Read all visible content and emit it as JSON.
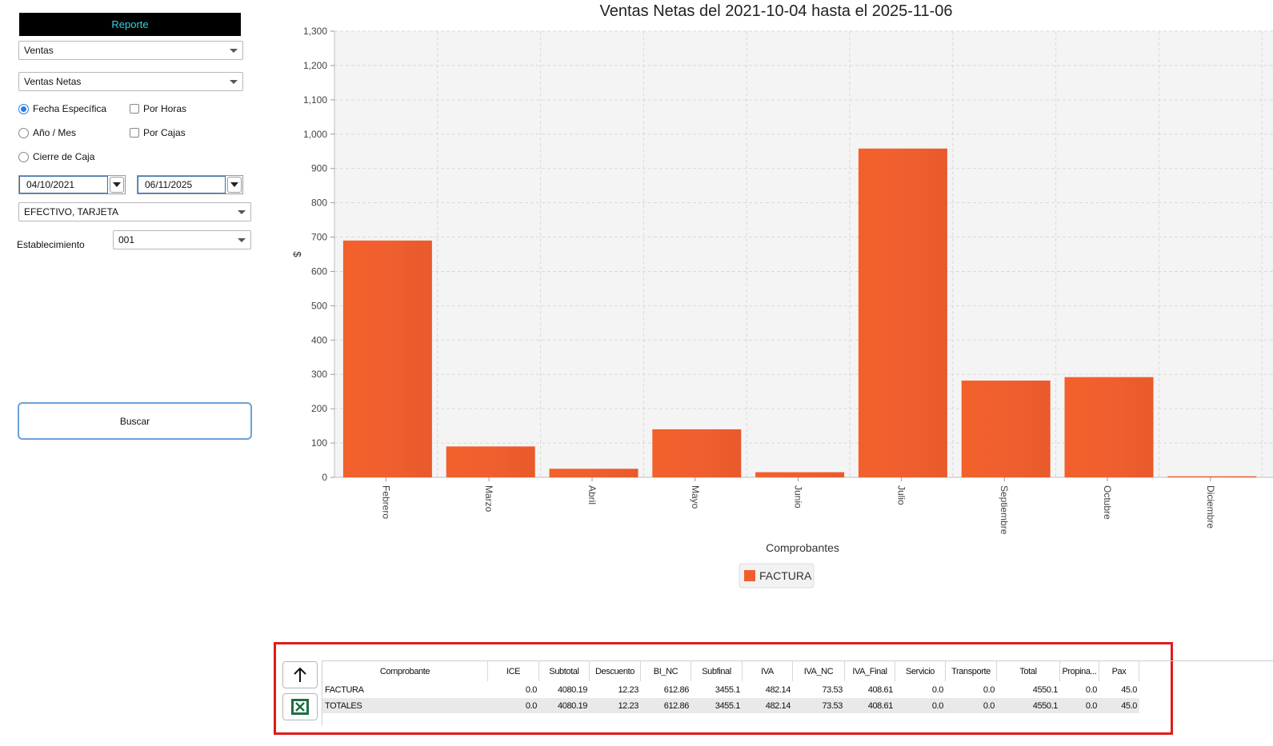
{
  "panel": {
    "header": "Reporte",
    "report_type": "Ventas",
    "report_subtype": "Ventas Netas",
    "radio_fecha": "Fecha Específica",
    "radio_anio": "Año / Mes",
    "radio_cierre": "Cierre de Caja",
    "check_horas": "Por Horas",
    "check_cajas": "Por Cajas",
    "date_from": "04/10/2021",
    "date_to": "06/11/2025",
    "payment": "EFECTIVO, TARJETA",
    "establecimiento_label": "Establecimiento",
    "establecimiento": "001",
    "buscar": "Buscar"
  },
  "colors": {
    "bar": "#f05f2e",
    "plot_bg": "#f4f4f4",
    "accent": "#2b7de0"
  },
  "icons": {
    "export_up": "arrow-up-icon",
    "excel": "excel-icon"
  },
  "chart_data": {
    "type": "bar",
    "title": "Ventas Netas del 2021-10-04 hasta el 2025-11-06",
    "xlabel": "Comprobantes",
    "ylabel": "$",
    "categories": [
      "Febrero",
      "Marzo",
      "Abril",
      "Mayo",
      "Junio",
      "Julio",
      "Septiembre",
      "Octubre",
      "Diciembre"
    ],
    "series": [
      {
        "name": "FACTURA",
        "values": [
          690,
          90,
          25,
          140,
          15,
          958,
          282,
          292,
          3
        ]
      }
    ],
    "ylim": [
      0,
      1300
    ],
    "yticks": [
      0,
      100,
      200,
      300,
      400,
      500,
      600,
      700,
      800,
      900,
      1000,
      1100,
      1200,
      1300
    ],
    "ytick_labels": [
      "0",
      "100",
      "200",
      "300",
      "400",
      "500",
      "600",
      "700",
      "800",
      "900",
      "1,000",
      "1,100",
      "1,200",
      "1,300"
    ],
    "grid": true,
    "legend": "bottom-center"
  },
  "table": {
    "columns": [
      "Comprobante",
      "ICE",
      "Subtotal",
      "Descuento",
      "BI_NC",
      "Subfinal",
      "IVA",
      "IVA_NC",
      "IVA_Final",
      "Servicio",
      "Transporte",
      "Total",
      "Propina...",
      "Pax"
    ],
    "rows": [
      [
        "FACTURA",
        "0.0",
        "4080.19",
        "12.23",
        "612.86",
        "3455.1",
        "482.14",
        "73.53",
        "408.61",
        "0.0",
        "0.0",
        "4550.1",
        "0.0",
        "45.0"
      ],
      [
        "TOTALES",
        "0.0",
        "4080.19",
        "12.23",
        "612.86",
        "3455.1",
        "482.14",
        "73.53",
        "408.61",
        "0.0",
        "0.0",
        "4550.1",
        "0.0",
        "45.0"
      ]
    ]
  }
}
